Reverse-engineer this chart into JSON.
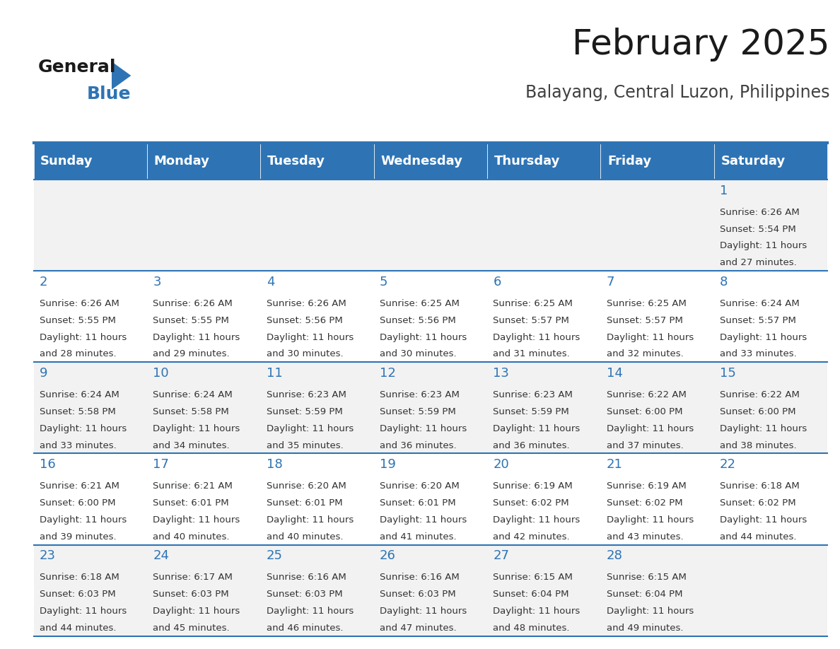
{
  "title": "February 2025",
  "subtitle": "Balayang, Central Luzon, Philippines",
  "header_bg": "#2E74B5",
  "header_text_color": "#FFFFFF",
  "cell_bg_light": "#F2F2F2",
  "cell_bg_white": "#FFFFFF",
  "day_number_color": "#2E74B5",
  "text_color": "#333333",
  "line_color": "#2E74B5",
  "days_of_week": [
    "Sunday",
    "Monday",
    "Tuesday",
    "Wednesday",
    "Thursday",
    "Friday",
    "Saturday"
  ],
  "calendar_data": [
    [
      null,
      null,
      null,
      null,
      null,
      null,
      {
        "day": 1,
        "sunrise": "6:26 AM",
        "sunset": "5:54 PM",
        "daylight": "11 hours\nand 27 minutes."
      }
    ],
    [
      {
        "day": 2,
        "sunrise": "6:26 AM",
        "sunset": "5:55 PM",
        "daylight": "11 hours\nand 28 minutes."
      },
      {
        "day": 3,
        "sunrise": "6:26 AM",
        "sunset": "5:55 PM",
        "daylight": "11 hours\nand 29 minutes."
      },
      {
        "day": 4,
        "sunrise": "6:26 AM",
        "sunset": "5:56 PM",
        "daylight": "11 hours\nand 30 minutes."
      },
      {
        "day": 5,
        "sunrise": "6:25 AM",
        "sunset": "5:56 PM",
        "daylight": "11 hours\nand 30 minutes."
      },
      {
        "day": 6,
        "sunrise": "6:25 AM",
        "sunset": "5:57 PM",
        "daylight": "11 hours\nand 31 minutes."
      },
      {
        "day": 7,
        "sunrise": "6:25 AM",
        "sunset": "5:57 PM",
        "daylight": "11 hours\nand 32 minutes."
      },
      {
        "day": 8,
        "sunrise": "6:24 AM",
        "sunset": "5:57 PM",
        "daylight": "11 hours\nand 33 minutes."
      }
    ],
    [
      {
        "day": 9,
        "sunrise": "6:24 AM",
        "sunset": "5:58 PM",
        "daylight": "11 hours\nand 33 minutes."
      },
      {
        "day": 10,
        "sunrise": "6:24 AM",
        "sunset": "5:58 PM",
        "daylight": "11 hours\nand 34 minutes."
      },
      {
        "day": 11,
        "sunrise": "6:23 AM",
        "sunset": "5:59 PM",
        "daylight": "11 hours\nand 35 minutes."
      },
      {
        "day": 12,
        "sunrise": "6:23 AM",
        "sunset": "5:59 PM",
        "daylight": "11 hours\nand 36 minutes."
      },
      {
        "day": 13,
        "sunrise": "6:23 AM",
        "sunset": "5:59 PM",
        "daylight": "11 hours\nand 36 minutes."
      },
      {
        "day": 14,
        "sunrise": "6:22 AM",
        "sunset": "6:00 PM",
        "daylight": "11 hours\nand 37 minutes."
      },
      {
        "day": 15,
        "sunrise": "6:22 AM",
        "sunset": "6:00 PM",
        "daylight": "11 hours\nand 38 minutes."
      }
    ],
    [
      {
        "day": 16,
        "sunrise": "6:21 AM",
        "sunset": "6:00 PM",
        "daylight": "11 hours\nand 39 minutes."
      },
      {
        "day": 17,
        "sunrise": "6:21 AM",
        "sunset": "6:01 PM",
        "daylight": "11 hours\nand 40 minutes."
      },
      {
        "day": 18,
        "sunrise": "6:20 AM",
        "sunset": "6:01 PM",
        "daylight": "11 hours\nand 40 minutes."
      },
      {
        "day": 19,
        "sunrise": "6:20 AM",
        "sunset": "6:01 PM",
        "daylight": "11 hours\nand 41 minutes."
      },
      {
        "day": 20,
        "sunrise": "6:19 AM",
        "sunset": "6:02 PM",
        "daylight": "11 hours\nand 42 minutes."
      },
      {
        "day": 21,
        "sunrise": "6:19 AM",
        "sunset": "6:02 PM",
        "daylight": "11 hours\nand 43 minutes."
      },
      {
        "day": 22,
        "sunrise": "6:18 AM",
        "sunset": "6:02 PM",
        "daylight": "11 hours\nand 44 minutes."
      }
    ],
    [
      {
        "day": 23,
        "sunrise": "6:18 AM",
        "sunset": "6:03 PM",
        "daylight": "11 hours\nand 44 minutes."
      },
      {
        "day": 24,
        "sunrise": "6:17 AM",
        "sunset": "6:03 PM",
        "daylight": "11 hours\nand 45 minutes."
      },
      {
        "day": 25,
        "sunrise": "6:16 AM",
        "sunset": "6:03 PM",
        "daylight": "11 hours\nand 46 minutes."
      },
      {
        "day": 26,
        "sunrise": "6:16 AM",
        "sunset": "6:03 PM",
        "daylight": "11 hours\nand 47 minutes."
      },
      {
        "day": 27,
        "sunrise": "6:15 AM",
        "sunset": "6:04 PM",
        "daylight": "11 hours\nand 48 minutes."
      },
      {
        "day": 28,
        "sunrise": "6:15 AM",
        "sunset": "6:04 PM",
        "daylight": "11 hours\nand 49 minutes."
      },
      null
    ]
  ],
  "background_color": "#FFFFFF"
}
